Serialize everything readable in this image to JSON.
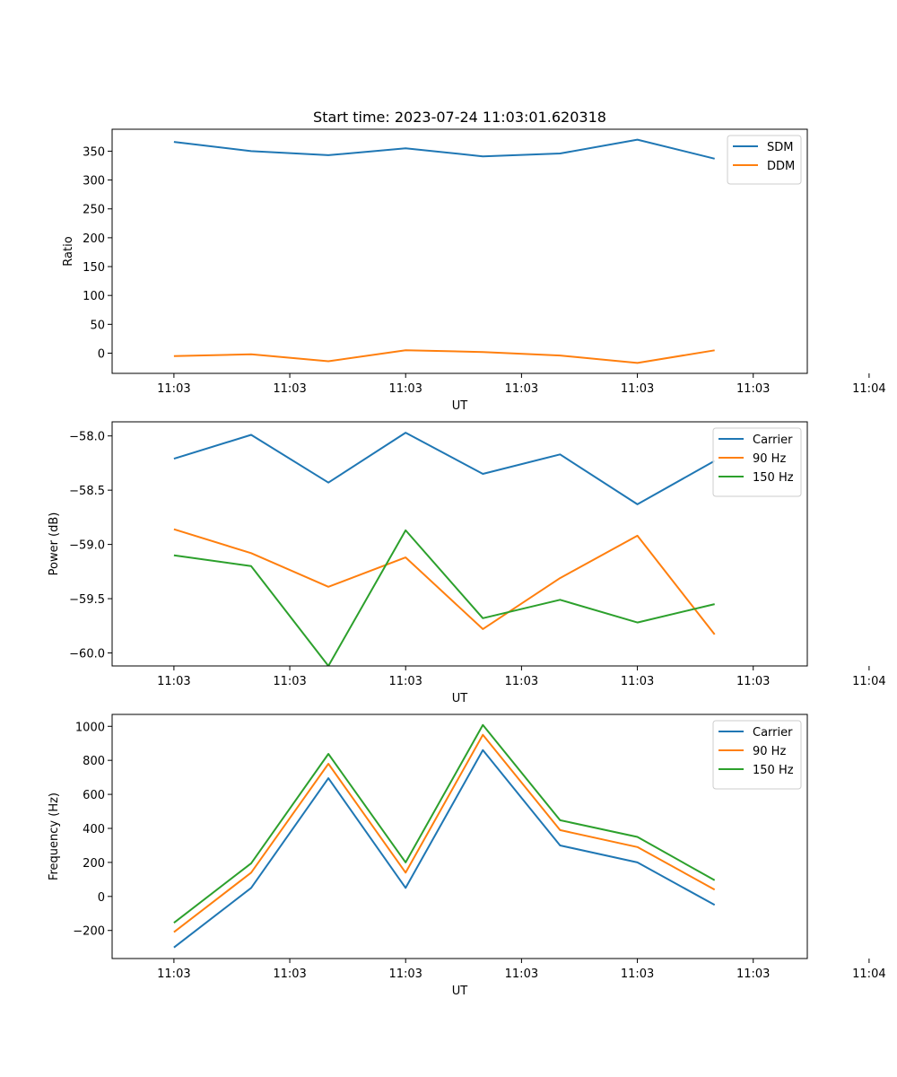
{
  "chart_data": [
    {
      "type": "line",
      "title": "Start time: 2023-07-24 11:03:01.620318",
      "xlabel": "UT",
      "ylabel": "Ratio",
      "xtick_labels": [
        "11:03",
        "11:03",
        "11:03",
        "11:03",
        "11:03",
        "11:03",
        "11:04"
      ],
      "x": [
        1,
        2,
        3,
        4,
        5,
        6,
        7,
        8
      ],
      "xlim": [
        0.2,
        9.2
      ],
      "ylim": [
        -35,
        388
      ],
      "yticks": [
        0,
        50,
        100,
        150,
        200,
        250,
        300,
        350
      ],
      "legend_loc": "top-right",
      "series": [
        {
          "name": "SDM",
          "color": "#1f77b4",
          "values": [
            366,
            350,
            343,
            355,
            341,
            346,
            370,
            337
          ]
        },
        {
          "name": "DDM",
          "color": "#ff7f0e",
          "values": [
            -5,
            -2,
            -14,
            5,
            2,
            -4,
            -17,
            5
          ]
        }
      ]
    },
    {
      "type": "line",
      "title": "",
      "xlabel": "UT",
      "ylabel": "Power (dB)",
      "xtick_labels": [
        "11:03",
        "11:03",
        "11:03",
        "11:03",
        "11:03",
        "11:03",
        "11:04"
      ],
      "x": [
        1,
        2,
        3,
        4,
        5,
        6,
        7,
        8
      ],
      "xlim": [
        0.2,
        9.2
      ],
      "ylim": [
        -60.12,
        -57.87
      ],
      "yticks": [
        -60.0,
        -59.5,
        -59.0,
        -58.5,
        -58.0
      ],
      "ytick_labels": [
        "−60.0",
        "−59.5",
        "−59.0",
        "−58.5",
        "−58.0"
      ],
      "legend_loc": "top-right",
      "series": [
        {
          "name": "Carrier",
          "color": "#1f77b4",
          "values": [
            -58.21,
            -57.99,
            -58.43,
            -57.97,
            -58.35,
            -58.17,
            -58.63,
            -58.23
          ]
        },
        {
          "name": "90 Hz",
          "color": "#ff7f0e",
          "values": [
            -58.86,
            -59.08,
            -59.39,
            -59.12,
            -59.78,
            -59.31,
            -58.92,
            -59.83
          ]
        },
        {
          "name": "150 Hz",
          "color": "#2ca02c",
          "values": [
            -59.1,
            -59.2,
            -60.12,
            -58.87,
            -59.68,
            -59.51,
            -59.72,
            -59.55
          ]
        }
      ]
    },
    {
      "type": "line",
      "title": "",
      "xlabel": "UT",
      "ylabel": "Frequency (Hz)",
      "xtick_labels": [
        "11:03",
        "11:03",
        "11:03",
        "11:03",
        "11:03",
        "11:03",
        "11:04"
      ],
      "x": [
        1,
        2,
        3,
        4,
        5,
        6,
        7,
        8
      ],
      "xlim": [
        0.2,
        9.2
      ],
      "ylim": [
        -365,
        1070
      ],
      "yticks": [
        -200,
        0,
        200,
        400,
        600,
        800,
        1000
      ],
      "ytick_labels": [
        "−200",
        "0",
        "200",
        "400",
        "600",
        "800",
        "1000"
      ],
      "legend_loc": "top-right",
      "series": [
        {
          "name": "Carrier",
          "color": "#1f77b4",
          "values": [
            -300,
            50,
            695,
            50,
            860,
            300,
            200,
            -50
          ]
        },
        {
          "name": "90 Hz",
          "color": "#ff7f0e",
          "values": [
            -210,
            140,
            780,
            140,
            950,
            390,
            290,
            40
          ]
        },
        {
          "name": "150 Hz",
          "color": "#2ca02c",
          "values": [
            -155,
            195,
            838,
            200,
            1008,
            448,
            350,
            95
          ]
        }
      ]
    }
  ]
}
